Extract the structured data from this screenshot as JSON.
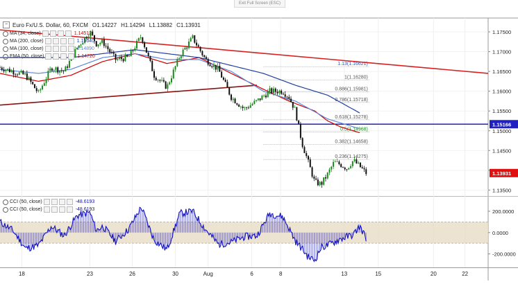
{
  "header": {
    "exit_fullscreen": "Exit Full Screen (ESC)",
    "symbol": "Euro Fx/U.S. Dollar, 60, FXCM",
    "ohlc": {
      "open": "O1.14227",
      "high": "H1.14294",
      "low": "L1.13882",
      "close": "C1.13931"
    }
  },
  "legend_main": [
    {
      "label": "MA (34, close)",
      "color": "#d00000",
      "value": "1.14512"
    },
    {
      "label": "MA (200, close)",
      "color": "#1f3fa0",
      "value": "1.15640"
    },
    {
      "label": "MA (100, close)",
      "color": "#5f88d8",
      "value": "1.14890"
    },
    {
      "label": "EMA (50, close)",
      "color": "#d00000",
      "value": "1.14720"
    }
  ],
  "legend_cci": [
    {
      "label": "CCI (50, close)",
      "color": "#1010c0",
      "value": "-48.6193"
    },
    {
      "label": "CCI (50, close)",
      "color": "#1010c0",
      "value": "-48.6193"
    }
  ],
  "colors": {
    "up": "#1a8a1a",
    "down": "#111111",
    "ma_red": "#d00000",
    "ma_blue": "#1f3fa0",
    "ma_lightblue": "#5f88d8",
    "trend_red": "#d82020",
    "trend_dark": "#8b1010",
    "hline": "#2020c0",
    "price_tag": "#e01010",
    "cci_line": "#1010c0",
    "cci_band": "#e8dcc6",
    "fib": "#555555"
  },
  "chart_data": {
    "type": "candlestick",
    "title": "Euro Fx/U.S. Dollar, 60, FXCM",
    "y_ticks": [
      "1.17500",
      "1.17000",
      "1.16500",
      "1.16000",
      "1.15500",
      "1.15000",
      "1.14500",
      "1.14000",
      "1.13500"
    ],
    "y_tick_values": [
      1.175,
      1.17,
      1.165,
      1.16,
      1.155,
      1.15,
      1.145,
      1.14,
      1.135
    ],
    "ylim": [
      1.1335,
      1.1785
    ],
    "x_ticks": [
      "18",
      "23",
      "26",
      "30",
      "Aug",
      "6",
      "8",
      "13",
      "15",
      "20",
      "22"
    ],
    "x_tick_values": [
      -7.6,
      3,
      9.6,
      16.3,
      21.4,
      28.2,
      32.7,
      42.6,
      47.9,
      56.5,
      61.4
    ],
    "xlim": [
      -11,
      65
    ],
    "last_price": {
      "label": "1.13931",
      "value": 1.13931,
      "color": "#e01010"
    },
    "horizontal_line": {
      "label": "1.15166",
      "value": 1.15166,
      "color": "#2020c0"
    },
    "close_path": {
      "x": [
        -11,
        -7,
        -5,
        -3,
        -1,
        1,
        3,
        4,
        5,
        7,
        9,
        11,
        13,
        15,
        17,
        19,
        21,
        23,
        25,
        27,
        29,
        31,
        33,
        34,
        35,
        36,
        37,
        38,
        39,
        40,
        41,
        42,
        43,
        44,
        45,
        46
      ],
      "y": [
        1.166,
        1.164,
        1.1595,
        1.166,
        1.165,
        1.171,
        1.175,
        1.172,
        1.1725,
        1.168,
        1.1685,
        1.174,
        1.164,
        1.161,
        1.169,
        1.1735,
        1.168,
        1.1655,
        1.1585,
        1.1555,
        1.1575,
        1.16,
        1.16,
        1.1585,
        1.155,
        1.147,
        1.142,
        1.137,
        1.1365,
        1.139,
        1.142,
        1.1415,
        1.1405,
        1.1425,
        1.141,
        1.1393
      ]
    },
    "series": [
      {
        "name": "MA (34, close)",
        "color": "#d00000",
        "x": [
          -11,
          -5,
          0,
          5,
          10,
          15,
          20,
          25,
          30,
          34,
          38,
          40,
          42,
          45
        ],
        "y": [
          1.1645,
          1.1625,
          1.164,
          1.1675,
          1.1695,
          1.167,
          1.1685,
          1.1645,
          1.1605,
          1.1575,
          1.155,
          1.1525,
          1.151,
          1.1495
        ]
      },
      {
        "name": "MA (200, close)",
        "color": "#1f3fa0",
        "x": [
          -11,
          -5,
          0,
          5,
          10,
          15,
          20,
          25,
          30,
          35,
          40,
          45
        ],
        "y": [
          1.1685,
          1.1685,
          1.1685,
          1.1695,
          1.1705,
          1.1695,
          1.1685,
          1.1665,
          1.1645,
          1.1615,
          1.159,
          1.1545
        ]
      },
      {
        "name": "MA (100, close)",
        "color": "#5f88d8",
        "x": [
          -11,
          -5,
          0,
          5,
          10,
          15,
          20,
          25,
          30,
          35,
          40,
          45
        ],
        "y": [
          1.1655,
          1.1645,
          1.1655,
          1.1685,
          1.1695,
          1.168,
          1.168,
          1.165,
          1.16,
          1.1575,
          1.153,
          1.1505
        ]
      }
    ],
    "trendlines": [
      {
        "name": "upper resistance",
        "x": [
          -11,
          65
        ],
        "y": [
          1.1755,
          1.1645
        ],
        "color": "#d82020"
      },
      {
        "name": "lower support",
        "x": [
          -11,
          29
        ],
        "y": [
          1.1565,
          1.1615
        ],
        "color": "#8b1010"
      }
    ],
    "fib_levels": [
      {
        "label": "1.13(1.16621)",
        "value": 1.16621,
        "color": "#2255cc"
      },
      {
        "label": "1(1.16280)",
        "value": 1.1628,
        "color": "#555555"
      },
      {
        "label": "0.886(1.15981)",
        "value": 1.15981,
        "color": "#555555"
      },
      {
        "label": "0.786(1.15718)",
        "value": 1.15718,
        "color": "#555555"
      },
      {
        "label": "0.618(1.15278)",
        "value": 1.15278,
        "color": "#555555"
      },
      {
        "label": "0.5(1.14968)",
        "value": 1.14968,
        "color": "#1a8a1a"
      },
      {
        "label": "0.382(1.14658)",
        "value": 1.14658,
        "color": "#555555"
      },
      {
        "label": "0.236(1.14275)",
        "value": 1.14275,
        "color": "#555555"
      }
    ],
    "cci": {
      "y_ticks": [
        "200.0000",
        "0.0000",
        "-200.0000"
      ],
      "y_tick_values": [
        200,
        0,
        -200
      ],
      "ylim": [
        -320,
        330
      ],
      "band": [
        100,
        -100
      ],
      "x": [
        -11,
        -9,
        -7,
        -5,
        -3,
        -1,
        1,
        3,
        4,
        5,
        7,
        9,
        11,
        13,
        15,
        17,
        19,
        21,
        23,
        25,
        27,
        29,
        31,
        33,
        34,
        35,
        36,
        37,
        38,
        39,
        40,
        41,
        42,
        43,
        44,
        45,
        46
      ],
      "y": [
        100,
        20,
        -150,
        -120,
        60,
        -30,
        160,
        190,
        20,
        60,
        -80,
        30,
        240,
        -70,
        -160,
        180,
        200,
        30,
        -110,
        -90,
        -40,
        -30,
        180,
        150,
        40,
        -80,
        -150,
        -230,
        -260,
        -140,
        -120,
        -90,
        -60,
        -40,
        -20,
        60,
        -48.6193
      ]
    }
  }
}
